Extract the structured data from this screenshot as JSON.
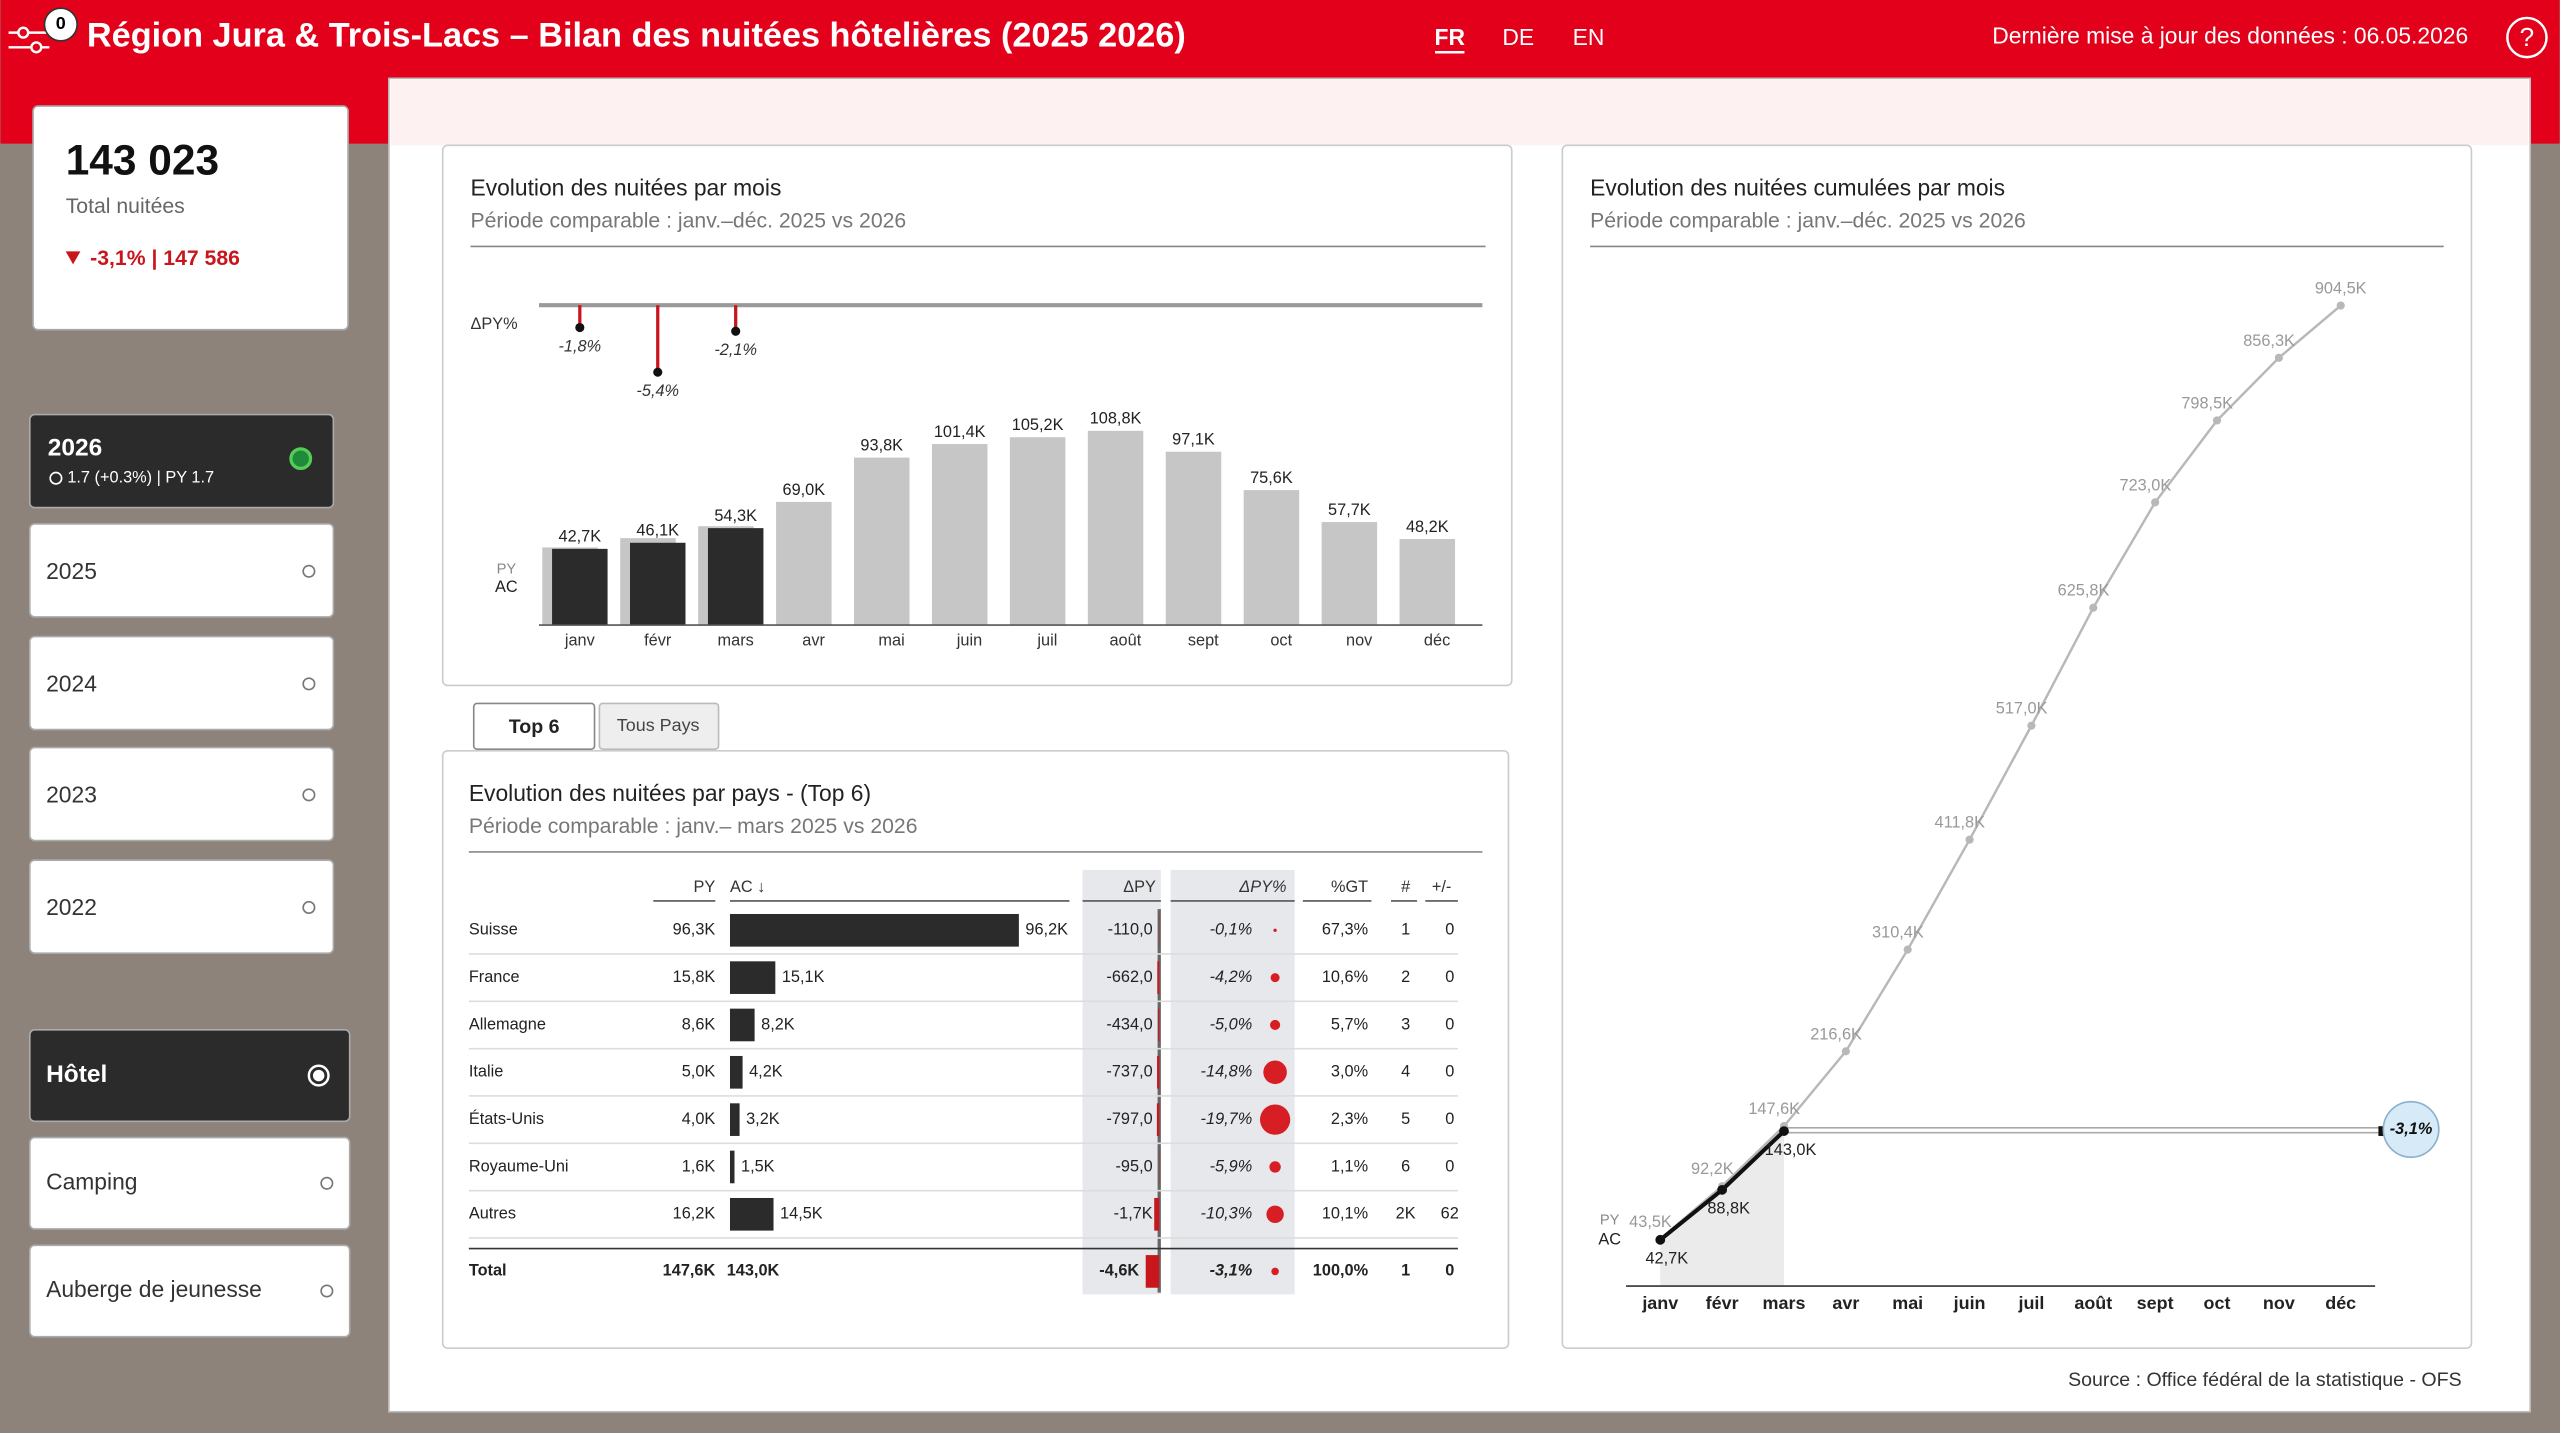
{
  "header": {
    "badge": "0",
    "title": "Région Jura & Trois-Lacs – Bilan des nuitées hôtelières (2025 2026)",
    "languages": [
      "FR",
      "DE",
      "EN"
    ],
    "update": "Dernière mise à jour des données : 06.05.2026",
    "help": "?"
  },
  "kpi": {
    "value": "143 023",
    "label": "Total nuitées",
    "delta": "-3,1% | 147 586"
  },
  "years": [
    {
      "label": "2026",
      "detail": "1.7 (+0.3%) | PY 1.7"
    },
    {
      "label": "2025"
    },
    {
      "label": "2024"
    },
    {
      "label": "2023"
    },
    {
      "label": "2022"
    }
  ],
  "accommodation": [
    "Hôtel",
    "Camping",
    "Auberge de jeunesse"
  ],
  "tabs": [
    "Top 6",
    "Tous Pays"
  ],
  "chart_data": [
    {
      "type": "bar",
      "title": "Evolution des nuitées par mois",
      "subtitle": "Période comparable : janv.–déc. 2025 vs 2026",
      "categories": [
        "janv",
        "févr",
        "mars",
        "avr",
        "mai",
        "juin",
        "juil",
        "août",
        "sept",
        "oct",
        "nov",
        "déc"
      ],
      "ylim": [
        0,
        120
      ],
      "series": [
        {
          "name": "PY",
          "color": "#c6c6c6",
          "values": [
            43.5,
            48.7,
            55.4,
            69.0,
            93.8,
            101.4,
            105.2,
            108.8,
            97.1,
            75.6,
            57.7,
            48.2
          ],
          "value_labels": [
            null,
            null,
            null,
            "69,0K",
            "93,8K",
            "101,4K",
            "105,2K",
            "108,8K",
            "97,1K",
            "75,6K",
            "57,7K",
            "48,2K"
          ]
        },
        {
          "name": "AC",
          "color": "#2b2b2b",
          "values": [
            42.7,
            46.1,
            54.3,
            null,
            null,
            null,
            null,
            null,
            null,
            null,
            null,
            null
          ],
          "value_labels": [
            "42,7K",
            "46,1K",
            "54,3K",
            null,
            null,
            null,
            null,
            null,
            null,
            null,
            null,
            null
          ]
        }
      ],
      "delta": {
        "name": "ΔPY%",
        "color": "#c8161d",
        "values": [
          -1.8,
          -5.4,
          -2.1,
          null,
          null,
          null,
          null,
          null,
          null,
          null,
          null,
          null
        ],
        "value_labels": [
          "-1,8%",
          "-5,4%",
          "-2,1%",
          null,
          null,
          null,
          null,
          null,
          null,
          null,
          null,
          null
        ]
      }
    },
    {
      "type": "line",
      "title": "Evolution des nuitées cumulées par mois",
      "subtitle": "Période comparable : janv.–déc. 2025 vs 2026",
      "categories": [
        "janv",
        "févr",
        "mars",
        "avr",
        "mai",
        "juin",
        "juil",
        "août",
        "sept",
        "oct",
        "nov",
        "déc"
      ],
      "ylim": [
        0,
        950
      ],
      "series": [
        {
          "name": "PY",
          "color": "#b8b8b8",
          "values": [
            43.5,
            92.2,
            147.6,
            216.6,
            310.4,
            411.8,
            517.0,
            625.8,
            723.0,
            798.5,
            856.3,
            904.5
          ],
          "value_labels": [
            "43,5K",
            "92,2K",
            "147,6K",
            "216,6K",
            "310,4K",
            "411,8K",
            "517,0K",
            "625,8K",
            "723,0K",
            "798,5K",
            "856,3K",
            "904,5K"
          ]
        },
        {
          "name": "AC",
          "color": "#111111",
          "values": [
            42.7,
            88.8,
            143.0,
            null,
            null,
            null,
            null,
            null,
            null,
            null,
            null,
            null
          ],
          "value_labels": [
            "42,7K",
            "88,8K",
            "143,0K",
            null,
            null,
            null,
            null,
            null,
            null,
            null,
            null,
            null
          ]
        }
      ],
      "annotation": "-3,1%"
    }
  ],
  "table": {
    "title": "Evolution des nuitées par pays - (Top 6)",
    "subtitle": "Période comparable : janv.– mars 2025 vs 2026",
    "columns": [
      "PY",
      "AC ↓",
      "ΔPY",
      "ΔPY%",
      "%GT",
      "#",
      "+/-"
    ],
    "rows": [
      {
        "country": "Suisse",
        "py": "96,3K",
        "ac": 96.2,
        "ac_label": "96,2K",
        "dpy": -110,
        "dpy_label": "-110,0",
        "dpct": -0.1,
        "dpct_label": "-0,1%",
        "gt": "67,3%",
        "rank": "1",
        "change": "0"
      },
      {
        "country": "France",
        "py": "15,8K",
        "ac": 15.1,
        "ac_label": "15,1K",
        "dpy": -662,
        "dpy_label": "-662,0",
        "dpct": -4.2,
        "dpct_label": "-4,2%",
        "gt": "10,6%",
        "rank": "2",
        "change": "0"
      },
      {
        "country": "Allemagne",
        "py": "8,6K",
        "ac": 8.2,
        "ac_label": "8,2K",
        "dpy": -434,
        "dpy_label": "-434,0",
        "dpct": -5.0,
        "dpct_label": "-5,0%",
        "gt": "5,7%",
        "rank": "3",
        "change": "0"
      },
      {
        "country": "Italie",
        "py": "5,0K",
        "ac": 4.2,
        "ac_label": "4,2K",
        "dpy": -737,
        "dpy_label": "-737,0",
        "dpct": -14.8,
        "dpct_label": "-14,8%",
        "gt": "3,0%",
        "rank": "4",
        "change": "0"
      },
      {
        "country": "États-Unis",
        "py": "4,0K",
        "ac": 3.2,
        "ac_label": "3,2K",
        "dpy": -797,
        "dpy_label": "-797,0",
        "dpct": -19.7,
        "dpct_label": "-19,7%",
        "gt": "2,3%",
        "rank": "5",
        "change": "0"
      },
      {
        "country": "Royaume-Uni",
        "py": "1,6K",
        "ac": 1.5,
        "ac_label": "1,5K",
        "dpy": -95,
        "dpy_label": "-95,0",
        "dpct": -5.9,
        "dpct_label": "-5,9%",
        "gt": "1,1%",
        "rank": "6",
        "change": "0"
      },
      {
        "country": "Autres",
        "py": "16,2K",
        "ac": 14.5,
        "ac_label": "14,5K",
        "dpy": -1700,
        "dpy_label": "-1,7K",
        "dpct": -10.3,
        "dpct_label": "-10,3%",
        "gt": "10,1%",
        "rank": "2K",
        "change": "62"
      }
    ],
    "total": {
      "country": "Total",
      "py": "147,6K",
      "ac": "143,0K",
      "dpy": -4600,
      "dpy_label": "-4,6K",
      "dpct": -3.1,
      "dpct_label": "-3,1%",
      "gt": "100,0%",
      "rank": "1",
      "change": "0"
    }
  },
  "source": "Source : Office fédéral de la statistique - OFS"
}
